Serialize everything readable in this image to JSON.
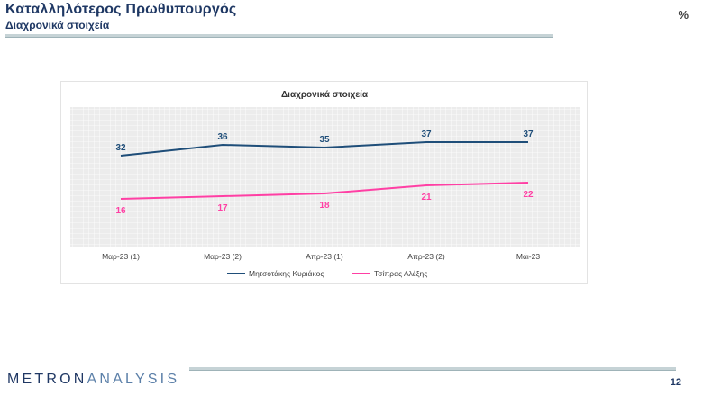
{
  "header": {
    "title": "Καταλληλότερος Πρωθυπουργός",
    "subtitle": "Διαχρονικά στοιχεία",
    "unit": "%"
  },
  "chart_data": {
    "type": "line",
    "title": "Διαχρονικά στοιχεία",
    "categories": [
      "Μαρ-23 (1)",
      "Μαρ-23 (2)",
      "Απρ-23 (1)",
      "Απρ-23 (2)",
      "Μάι-23"
    ],
    "series": [
      {
        "name": "Μητσοτάκης Κυριάκος",
        "values": [
          32,
          36,
          35,
          37,
          37
        ],
        "color": "#1f4e79"
      },
      {
        "name": "Τσίπρας Αλέξης",
        "values": [
          16,
          17,
          18,
          21,
          22
        ],
        "color": "#ff3fa4"
      }
    ],
    "data_labels": true,
    "grid": true,
    "legend_position": "bottom"
  },
  "footer": {
    "brand_dark": "METRON",
    "brand_light": "ANALYSIS",
    "page_number": "12"
  }
}
